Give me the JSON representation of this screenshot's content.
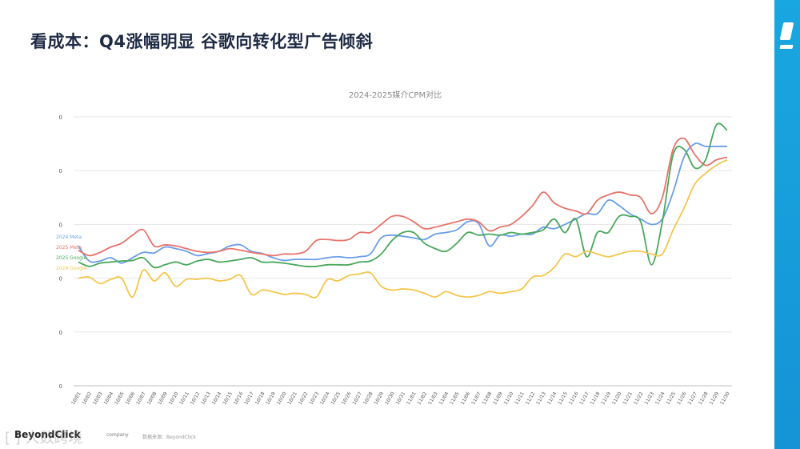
{
  "page": {
    "title": "看成本：Q4涨幅明显  谷歌向转化型广告倾斜"
  },
  "footer": {
    "brand": "BeyondClick",
    "company": "company",
    "source": "数据来源：BeyondClick",
    "watermark": "[ ] 大数跨境"
  },
  "chart_data": {
    "type": "line",
    "title": "2024-2025媒介CPM对比",
    "xlabel": "",
    "ylabel": "",
    "ylim": [
      0,
      5
    ],
    "ytick_labels": [
      "0",
      "0",
      "0",
      "0",
      "0",
      "0"
    ],
    "grid": true,
    "legend": "inline-left",
    "categories": [
      "10/01",
      "10/02",
      "10/03",
      "10/04",
      "10/05",
      "10/06",
      "10/07",
      "10/08",
      "10/09",
      "10/10",
      "10/11",
      "10/12",
      "10/13",
      "10/14",
      "10/15",
      "10/16",
      "10/17",
      "10/18",
      "10/19",
      "10/20",
      "10/21",
      "10/22",
      "10/23",
      "10/24",
      "10/25",
      "10/26",
      "10/27",
      "10/28",
      "10/29",
      "10/30",
      "10/31",
      "11/01",
      "11/02",
      "11/03",
      "11/04",
      "11/05",
      "11/06",
      "11/07",
      "11/08",
      "11/09",
      "11/10",
      "11/11",
      "11/12",
      "11/13",
      "11/14",
      "11/15",
      "11/16",
      "11/17",
      "11/18",
      "11/19",
      "11/20",
      "11/21",
      "11/22",
      "11/23",
      "11/24",
      "11/25",
      "11/26",
      "11/27",
      "11/28",
      "11/29",
      "11/30"
    ],
    "series": [
      {
        "name": "2024 Meta",
        "color": "#6b9ee8",
        "values": [
          2.6,
          2.32,
          2.32,
          2.38,
          2.28,
          2.38,
          2.48,
          2.47,
          2.58,
          2.55,
          2.5,
          2.42,
          2.46,
          2.5,
          2.6,
          2.62,
          2.5,
          2.46,
          2.38,
          2.33,
          2.35,
          2.35,
          2.35,
          2.38,
          2.4,
          2.38,
          2.4,
          2.45,
          2.75,
          2.8,
          2.78,
          2.75,
          2.72,
          2.82,
          2.85,
          2.9,
          3.05,
          3.02,
          2.6,
          2.8,
          2.78,
          2.82,
          2.82,
          2.95,
          2.92,
          3.0,
          3.1,
          3.2,
          3.2,
          3.45,
          3.35,
          3.2,
          3.1,
          3.0,
          3.1,
          3.6,
          4.25,
          4.5,
          4.45,
          4.45,
          4.45
        ]
      },
      {
        "name": "2025 Meta",
        "color": "#e8736a",
        "values": [
          2.52,
          2.42,
          2.48,
          2.58,
          2.65,
          2.8,
          2.9,
          2.6,
          2.62,
          2.6,
          2.55,
          2.5,
          2.48,
          2.5,
          2.55,
          2.52,
          2.48,
          2.45,
          2.42,
          2.45,
          2.45,
          2.5,
          2.7,
          2.72,
          2.7,
          2.72,
          2.85,
          2.85,
          3.0,
          3.15,
          3.15,
          3.05,
          2.92,
          2.95,
          3.0,
          3.05,
          3.1,
          3.05,
          2.88,
          2.95,
          3.0,
          3.15,
          3.35,
          3.6,
          3.4,
          3.3,
          3.25,
          3.2,
          3.45,
          3.55,
          3.6,
          3.55,
          3.5,
          3.2,
          3.5,
          4.4,
          4.6,
          4.3,
          4.1,
          4.2,
          4.25
        ]
      },
      {
        "name": "2025 Google",
        "color": "#49a85c",
        "values": [
          2.3,
          2.22,
          2.28,
          2.3,
          2.32,
          2.33,
          2.38,
          2.2,
          2.25,
          2.3,
          2.25,
          2.32,
          2.35,
          2.3,
          2.32,
          2.35,
          2.38,
          2.3,
          2.3,
          2.28,
          2.25,
          2.22,
          2.22,
          2.25,
          2.25,
          2.25,
          2.3,
          2.32,
          2.45,
          2.7,
          2.85,
          2.85,
          2.65,
          2.55,
          2.5,
          2.65,
          2.85,
          2.8,
          2.82,
          2.8,
          2.85,
          2.82,
          2.85,
          2.9,
          3.1,
          2.85,
          3.1,
          2.4,
          2.85,
          2.85,
          3.15,
          3.15,
          3.05,
          2.25,
          3.05,
          4.3,
          4.4,
          4.05,
          4.2,
          4.85,
          4.75
        ]
      },
      {
        "name": "2024 Google",
        "color": "#f4c64b",
        "values": [
          2.0,
          2.02,
          1.9,
          1.98,
          2.0,
          1.65,
          2.15,
          1.95,
          2.1,
          1.85,
          1.98,
          1.98,
          2.0,
          1.95,
          1.98,
          2.05,
          1.7,
          1.78,
          1.75,
          1.7,
          1.72,
          1.7,
          1.65,
          1.97,
          1.95,
          2.05,
          2.08,
          2.1,
          1.85,
          1.78,
          1.8,
          1.78,
          1.72,
          1.65,
          1.75,
          1.68,
          1.65,
          1.68,
          1.75,
          1.72,
          1.75,
          1.8,
          2.02,
          2.05,
          2.2,
          2.45,
          2.4,
          2.5,
          2.45,
          2.4,
          2.45,
          2.5,
          2.5,
          2.45,
          2.45,
          2.9,
          3.3,
          3.75,
          3.95,
          4.1,
          4.2
        ]
      }
    ]
  }
}
